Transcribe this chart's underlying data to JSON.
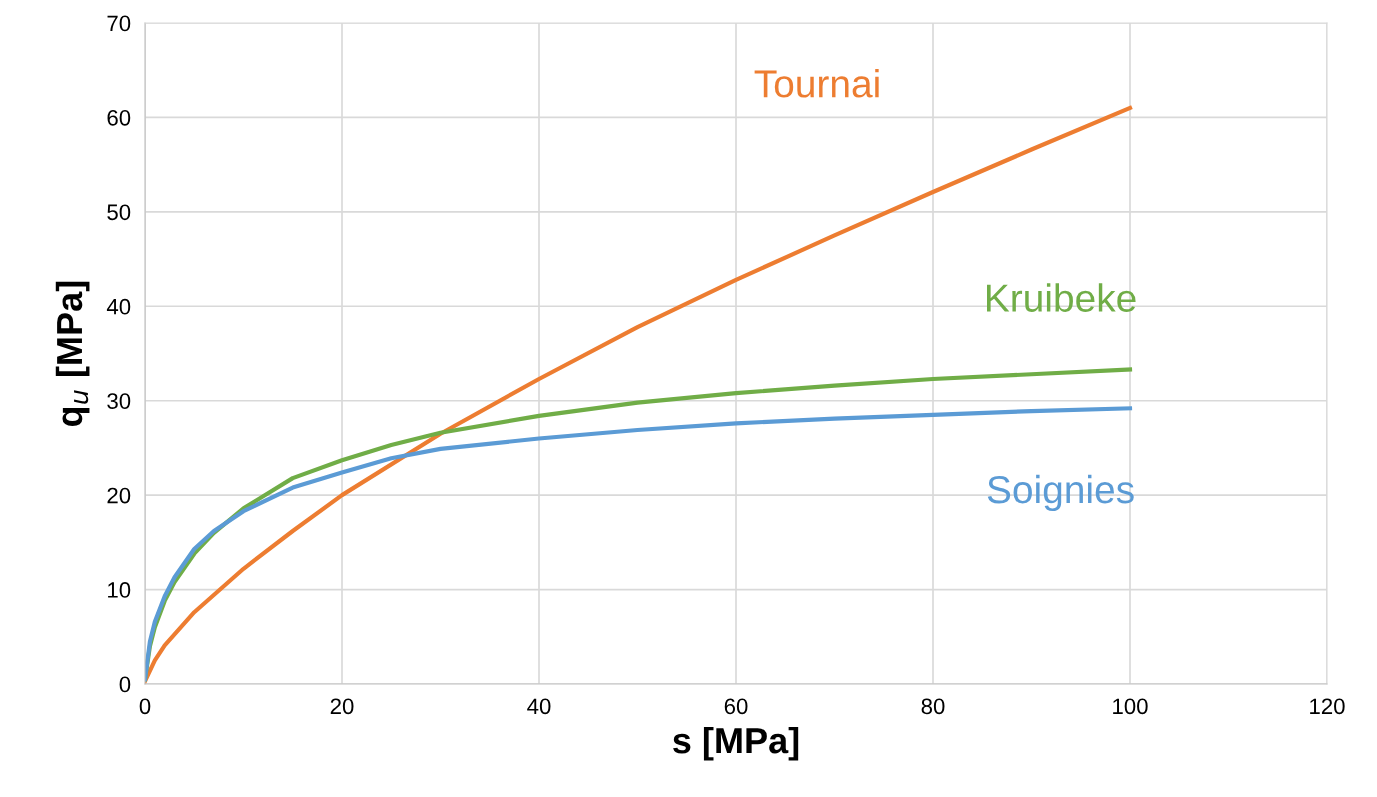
{
  "chart_data": {
    "type": "line",
    "xlabel": "s [MPa]",
    "ylabel": "q$_{u}$ [MPa]",
    "xlim": [
      0,
      120
    ],
    "xticks": [
      0,
      20,
      40,
      60,
      80,
      100,
      120
    ],
    "ylim": [
      0,
      70
    ],
    "yticks": [
      0,
      10,
      20,
      30,
      40,
      50,
      60,
      70
    ],
    "grid": true,
    "legend": false,
    "marker": "none",
    "line_style": "solid",
    "series": [
      {
        "name": "Tournai",
        "color": "#ed7d31",
        "x": [
          0,
          1,
          2,
          5,
          10,
          15,
          20,
          30,
          40,
          50,
          60,
          70,
          80,
          90,
          100
        ],
        "values": [
          0.3,
          2.5,
          4.1,
          7.6,
          12.2,
          16.2,
          20,
          26.5,
          32.3,
          37.8,
          42.8,
          47.5,
          52.1,
          56.6,
          61
        ]
      },
      {
        "name": "Kruibeke",
        "color": "#70ad47",
        "x": [
          0,
          0.5,
          1,
          2,
          3,
          5,
          7,
          10,
          15,
          20,
          25,
          30,
          40,
          50,
          60,
          70,
          80,
          90,
          100
        ],
        "values": [
          0.5,
          4,
          6,
          8.8,
          10.8,
          13.8,
          16,
          18.6,
          21.8,
          23.7,
          25.3,
          26.6,
          28.4,
          29.8,
          30.8,
          31.6,
          32.3,
          32.8,
          33.3
        ]
      },
      {
        "name": "Soignies",
        "color": "#5b9bd5",
        "x": [
          0,
          0.5,
          1,
          2,
          3,
          5,
          7,
          10,
          15,
          20,
          25,
          30,
          40,
          50,
          60,
          70,
          80,
          90,
          100
        ],
        "values": [
          0.5,
          4.5,
          6.6,
          9.3,
          11.3,
          14.3,
          16.2,
          18.3,
          20.8,
          22.4,
          23.9,
          24.9,
          26,
          26.9,
          27.6,
          28.1,
          28.5,
          28.9,
          29.2
        ]
      }
    ]
  }
}
